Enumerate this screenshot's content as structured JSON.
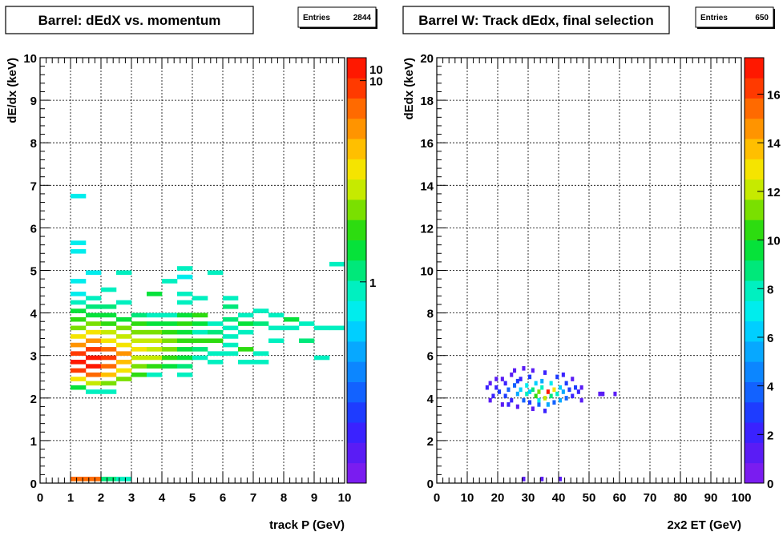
{
  "chart_data": [
    {
      "type": "heatmap",
      "title": "Barrel: dEdX vs. momentum",
      "stats": {
        "label": "Entries",
        "value": "2844"
      },
      "xlabel": "track P (GeV)",
      "ylabel": "dE/dx (keV)",
      "xlim": [
        0,
        10
      ],
      "ylim": [
        0,
        10
      ],
      "x_ticks": [
        "0",
        "1",
        "2",
        "3",
        "4",
        "5",
        "6",
        "7",
        "8",
        "9",
        "10"
      ],
      "y_ticks": [
        "0",
        "1",
        "2",
        "3",
        "4",
        "5",
        "6",
        "7",
        "8",
        "9",
        "10"
      ],
      "grid": true,
      "log_z": true,
      "z_range": [
        0.1,
        13
      ],
      "z_ticks": [
        {
          "v": 1,
          "t": "1"
        },
        {
          "v": 10,
          "t": "10"
        }
      ],
      "z_max_label": "10",
      "cells": [
        [
          1.0,
          6.7,
          0.8
        ],
        [
          1.0,
          5.6,
          0.8
        ],
        [
          1.0,
          5.4,
          0.8
        ],
        [
          1.0,
          4.7,
          0.8
        ],
        [
          1.0,
          4.4,
          0.8
        ],
        [
          1.0,
          4.2,
          1.0
        ],
        [
          1.0,
          4.0,
          1.5
        ],
        [
          1.0,
          3.8,
          2.0
        ],
        [
          1.0,
          3.6,
          2.5
        ],
        [
          1.0,
          3.4,
          3.5
        ],
        [
          1.0,
          3.2,
          6
        ],
        [
          1.0,
          3.0,
          9
        ],
        [
          1.0,
          2.8,
          11
        ],
        [
          1.0,
          2.6,
          10
        ],
        [
          1.0,
          2.4,
          4
        ],
        [
          1.0,
          2.2,
          1.5
        ],
        [
          1.5,
          4.9,
          0.8
        ],
        [
          1.5,
          4.3,
          1.0
        ],
        [
          1.5,
          4.1,
          1.2
        ],
        [
          1.5,
          3.9,
          1.5
        ],
        [
          1.5,
          3.7,
          2.5
        ],
        [
          1.5,
          3.5,
          3.5
        ],
        [
          1.5,
          3.3,
          6
        ],
        [
          1.5,
          3.1,
          10
        ],
        [
          1.5,
          2.9,
          13
        ],
        [
          1.5,
          2.7,
          12
        ],
        [
          1.5,
          2.5,
          7
        ],
        [
          1.5,
          2.3,
          3
        ],
        [
          1.5,
          2.1,
          1.0
        ],
        [
          2.0,
          4.5,
          0.9
        ],
        [
          2.0,
          4.1,
          1.1
        ],
        [
          2.0,
          3.9,
          1.6
        ],
        [
          2.0,
          3.7,
          2
        ],
        [
          2.0,
          3.5,
          2.8
        ],
        [
          2.0,
          3.3,
          4
        ],
        [
          2.0,
          3.1,
          7
        ],
        [
          2.0,
          2.9,
          9
        ],
        [
          2.0,
          2.7,
          8
        ],
        [
          2.0,
          2.5,
          5
        ],
        [
          2.0,
          2.3,
          2.5
        ],
        [
          2.0,
          2.1,
          0.9
        ],
        [
          2.5,
          4.9,
          1.0
        ],
        [
          2.5,
          4.2,
          0.9
        ],
        [
          2.5,
          3.8,
          1.5
        ],
        [
          2.5,
          3.6,
          2.5
        ],
        [
          2.5,
          3.4,
          3
        ],
        [
          2.5,
          3.2,
          4
        ],
        [
          2.5,
          3.0,
          6
        ],
        [
          2.5,
          2.8,
          5
        ],
        [
          2.5,
          2.6,
          4
        ],
        [
          2.5,
          2.4,
          2.5
        ],
        [
          3.0,
          3.9,
          1.2
        ],
        [
          3.0,
          3.7,
          1.8
        ],
        [
          3.0,
          3.5,
          2.5
        ],
        [
          3.0,
          3.3,
          3
        ],
        [
          3.0,
          3.1,
          3.5
        ],
        [
          3.0,
          2.9,
          3
        ],
        [
          3.0,
          2.7,
          2.5
        ],
        [
          3.0,
          2.5,
          2
        ],
        [
          3.5,
          4.4,
          1.4
        ],
        [
          3.5,
          3.9,
          1.0
        ],
        [
          3.5,
          3.7,
          1.6
        ],
        [
          3.5,
          3.5,
          2.2
        ],
        [
          3.5,
          3.3,
          2.8
        ],
        [
          3.5,
          3.1,
          3
        ],
        [
          3.5,
          2.9,
          2.8
        ],
        [
          3.5,
          2.7,
          2
        ],
        [
          3.5,
          2.5,
          1.0
        ],
        [
          4.0,
          4.7,
          0.9
        ],
        [
          4.0,
          3.9,
          0.9
        ],
        [
          4.0,
          3.7,
          1.5
        ],
        [
          4.0,
          3.5,
          2
        ],
        [
          4.0,
          3.3,
          2.5
        ],
        [
          4.0,
          3.1,
          2.2
        ],
        [
          4.0,
          2.9,
          2
        ],
        [
          4.0,
          2.7,
          1.6
        ],
        [
          4.5,
          5.0,
          0.9
        ],
        [
          4.5,
          4.8,
          0.8
        ],
        [
          4.5,
          4.4,
          0.9
        ],
        [
          4.5,
          4.2,
          1.0
        ],
        [
          4.5,
          3.9,
          1.4
        ],
        [
          4.5,
          3.7,
          1.8
        ],
        [
          4.5,
          3.5,
          1.3
        ],
        [
          4.5,
          3.3,
          1.8
        ],
        [
          4.5,
          3.1,
          1.5
        ],
        [
          4.5,
          2.9,
          1.5
        ],
        [
          4.5,
          2.7,
          1.2
        ],
        [
          4.5,
          2.5,
          0.9
        ],
        [
          5.0,
          4.3,
          0.9
        ],
        [
          5.0,
          3.9,
          2
        ],
        [
          5.0,
          3.7,
          1.5
        ],
        [
          5.0,
          3.5,
          1.0
        ],
        [
          5.0,
          3.3,
          1.8
        ],
        [
          5.0,
          3.1,
          1.2
        ],
        [
          5.0,
          2.9,
          1.0
        ],
        [
          5.5,
          4.9,
          1.0
        ],
        [
          5.5,
          3.7,
          0.9
        ],
        [
          5.5,
          3.5,
          1.2
        ],
        [
          5.5,
          3.3,
          2
        ],
        [
          5.5,
          3.0,
          1.0
        ],
        [
          5.5,
          2.8,
          0.9
        ],
        [
          6.0,
          4.3,
          0.9
        ],
        [
          6.0,
          4.1,
          1.1
        ],
        [
          6.0,
          3.8,
          1.2
        ],
        [
          6.0,
          3.6,
          1.0
        ],
        [
          6.0,
          3.4,
          1.0
        ],
        [
          6.0,
          3.2,
          0.9
        ],
        [
          6.0,
          3.0,
          1.0
        ],
        [
          6.5,
          3.9,
          1.0
        ],
        [
          6.5,
          3.7,
          1.4
        ],
        [
          6.5,
          3.5,
          1.0
        ],
        [
          6.5,
          3.1,
          2
        ],
        [
          6.5,
          2.8,
          0.9
        ],
        [
          7.0,
          4.0,
          0.9
        ],
        [
          7.0,
          3.7,
          1.2
        ],
        [
          7.0,
          3.0,
          0.9
        ],
        [
          7.0,
          2.8,
          0.9
        ],
        [
          7.5,
          3.9,
          0.9
        ],
        [
          7.5,
          3.6,
          1.0
        ],
        [
          7.5,
          3.3,
          0.9
        ],
        [
          8.0,
          3.8,
          1.4
        ],
        [
          8.0,
          3.6,
          0.9
        ],
        [
          8.5,
          3.7,
          0.9
        ],
        [
          8.5,
          3.3,
          1.2
        ],
        [
          9.0,
          3.6,
          0.9
        ],
        [
          9.0,
          2.9,
          0.9
        ],
        [
          9.5,
          3.6,
          0.9
        ],
        [
          9.5,
          5.1,
          0.9
        ],
        [
          1.0,
          0.05,
          8
        ],
        [
          1.5,
          0.05,
          8
        ],
        [
          2.0,
          0.05,
          1.2
        ],
        [
          2.5,
          0.05,
          0.9
        ]
      ]
    },
    {
      "type": "heatmap",
      "title": "Barrel W: Track dEdx, final selection",
      "stats": {
        "label": "Entries",
        "value": "650"
      },
      "xlabel": "2x2 ET (GeV)",
      "ylabel": "dEdx (keV)",
      "xlim": [
        0,
        100
      ],
      "ylim": [
        0,
        20
      ],
      "x_ticks": [
        "0",
        "10",
        "20",
        "30",
        "40",
        "50",
        "60",
        "70",
        "80",
        "90",
        "100"
      ],
      "y_ticks": [
        "0",
        "2",
        "4",
        "6",
        "8",
        "10",
        "12",
        "14",
        "16",
        "18",
        "20"
      ],
      "grid": true,
      "log_z": false,
      "z_range": [
        0,
        17.5
      ],
      "z_ticks": [
        {
          "v": 0,
          "t": "0"
        },
        {
          "v": 2,
          "t": "2"
        },
        {
          "v": 4,
          "t": "4"
        },
        {
          "v": 6,
          "t": "6"
        },
        {
          "v": 8,
          "t": "8"
        },
        {
          "v": 10,
          "t": "10"
        },
        {
          "v": 12,
          "t": "12"
        },
        {
          "v": 14,
          "t": "14"
        },
        {
          "v": 16,
          "t": "16"
        }
      ],
      "cells": [
        [
          16,
          4.4,
          2
        ],
        [
          17,
          4.6,
          1
        ],
        [
          17,
          3.8,
          1
        ],
        [
          18,
          4.0,
          2
        ],
        [
          19,
          4.4,
          2
        ],
        [
          19,
          4.8,
          1
        ],
        [
          20,
          4.2,
          3
        ],
        [
          21,
          3.6,
          1
        ],
        [
          22,
          4.6,
          2
        ],
        [
          22,
          4.0,
          3
        ],
        [
          23,
          4.3,
          4
        ],
        [
          24,
          3.8,
          2
        ],
        [
          24,
          5.0,
          1
        ],
        [
          25,
          4.5,
          4
        ],
        [
          26,
          4.1,
          5
        ],
        [
          26,
          3.5,
          1
        ],
        [
          27,
          4.8,
          2
        ],
        [
          27,
          4.3,
          6
        ],
        [
          28,
          3.8,
          4
        ],
        [
          28,
          5.3,
          1
        ],
        [
          29,
          4.5,
          7
        ],
        [
          29,
          4.1,
          8
        ],
        [
          30,
          3.7,
          3
        ],
        [
          30,
          4.9,
          3
        ],
        [
          31,
          4.3,
          9
        ],
        [
          31,
          3.4,
          1
        ],
        [
          32,
          4.6,
          6
        ],
        [
          32,
          4.0,
          10
        ],
        [
          33,
          4.2,
          11
        ],
        [
          33,
          3.6,
          4
        ],
        [
          34,
          4.7,
          5
        ],
        [
          34,
          4.4,
          8
        ],
        [
          35,
          3.9,
          12
        ],
        [
          35,
          5.1,
          2
        ],
        [
          36,
          4.2,
          17
        ],
        [
          36,
          3.6,
          5
        ],
        [
          37,
          4.6,
          7
        ],
        [
          37,
          4.0,
          9
        ],
        [
          38,
          4.3,
          13
        ],
        [
          38,
          3.7,
          4
        ],
        [
          39,
          4.9,
          3
        ],
        [
          39,
          4.1,
          8
        ],
        [
          40,
          4.4,
          6
        ],
        [
          40,
          3.8,
          5
        ],
        [
          41,
          4.2,
          5
        ],
        [
          41,
          5.0,
          2
        ],
        [
          42,
          4.6,
          3
        ],
        [
          42,
          3.9,
          4
        ],
        [
          43,
          4.3,
          3
        ],
        [
          44,
          4.0,
          2
        ],
        [
          44,
          4.8,
          1
        ],
        [
          45,
          4.4,
          3
        ],
        [
          46,
          4.2,
          2
        ],
        [
          47,
          4.4,
          1
        ],
        [
          47,
          3.8,
          1
        ],
        [
          33,
          3.8,
          7
        ],
        [
          30,
          4.2,
          6
        ],
        [
          26,
          4.7,
          3
        ],
        [
          21,
          4.8,
          1
        ],
        [
          23,
          3.6,
          2
        ],
        [
          31,
          5.2,
          1
        ],
        [
          25,
          5.2,
          1
        ],
        [
          35,
          3.3,
          2
        ],
        [
          53,
          4.1,
          1
        ],
        [
          54,
          4.1,
          1
        ],
        [
          58,
          4.1,
          1
        ],
        [
          28,
          0.1,
          1
        ],
        [
          34,
          0.1,
          1
        ],
        [
          40,
          0.1,
          1
        ]
      ]
    }
  ]
}
